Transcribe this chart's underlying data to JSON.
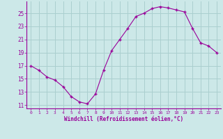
{
  "x": [
    0,
    1,
    2,
    3,
    4,
    5,
    6,
    7,
    8,
    9,
    10,
    11,
    12,
    13,
    14,
    15,
    16,
    17,
    18,
    19,
    20,
    21,
    22,
    23
  ],
  "y": [
    17.0,
    16.3,
    15.3,
    14.8,
    13.8,
    12.3,
    11.5,
    11.2,
    12.7,
    16.3,
    19.3,
    21.0,
    22.7,
    24.5,
    25.0,
    25.7,
    26.0,
    25.8,
    25.5,
    25.2,
    22.7,
    20.5,
    20.0,
    19.0
  ],
  "line_color": "#990099",
  "marker": "+",
  "marker_size": 3,
  "bg_color": "#cce8e8",
  "grid_color": "#aacfcf",
  "xlabel": "Windchill (Refroidissement éolien,°C)",
  "xlabel_color": "#990099",
  "tick_color": "#990099",
  "yticks": [
    11,
    13,
    15,
    17,
    19,
    21,
    23,
    25
  ],
  "xticks": [
    0,
    1,
    2,
    3,
    4,
    5,
    6,
    7,
    8,
    9,
    10,
    11,
    12,
    13,
    14,
    15,
    16,
    17,
    18,
    19,
    20,
    21,
    22,
    23
  ],
  "ylim": [
    10.5,
    26.8
  ],
  "xlim": [
    -0.5,
    23.5
  ]
}
